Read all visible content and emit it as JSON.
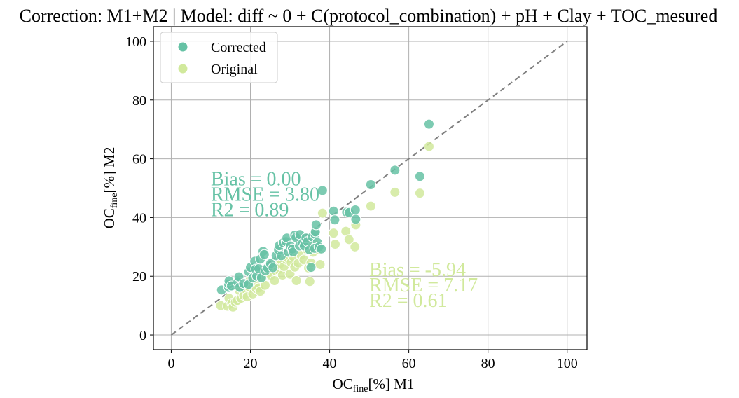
{
  "chart_data": {
    "type": "scatter",
    "title": "Correction: M1+M2 | Model: diff ~ 0 + C(protocol_combination) + pH + Clay + TOC_mesured",
    "xlabel": {
      "base": "OC",
      "sub": "fine",
      "rest": "[%] M1"
    },
    "ylabel": {
      "base": "OC",
      "sub": "fine",
      "rest": "[%] M2"
    },
    "xlim": [
      -4.5,
      105
    ],
    "ylim": [
      -5,
      105
    ],
    "xticks": [
      0,
      20,
      40,
      60,
      80,
      100
    ],
    "yticks": [
      0,
      20,
      40,
      60,
      80,
      100
    ],
    "grid": true,
    "legend_position": "upper left",
    "identity_line": {
      "from": [
        0,
        0
      ],
      "to": [
        100,
        100
      ],
      "style": "dashed",
      "color": "#7f7f7f"
    },
    "series": [
      {
        "name": "Corrected",
        "color": "#66c2a5",
        "stats": [
          "Bias = 0.00",
          "RMSE = 3.80",
          "R2 = 0.89"
        ],
        "stats_anchor": [
          10,
          51
        ],
        "points": [
          [
            12.7,
            15.3
          ],
          [
            14.5,
            16.2
          ],
          [
            14.5,
            17.3
          ],
          [
            14.6,
            18.4
          ],
          [
            15.2,
            16.7
          ],
          [
            16.8,
            18.0
          ],
          [
            17.1,
            19.8
          ],
          [
            17.3,
            16.2
          ],
          [
            18.3,
            17.5
          ],
          [
            19.5,
            17.2
          ],
          [
            19.6,
            21.5
          ],
          [
            20.0,
            23.0
          ],
          [
            20.6,
            19.4
          ],
          [
            21.1,
            25.1
          ],
          [
            21.3,
            22.4
          ],
          [
            21.6,
            20.0
          ],
          [
            22.1,
            22.6
          ],
          [
            22.5,
            25.8
          ],
          [
            22.8,
            19.5
          ],
          [
            23.2,
            28.5
          ],
          [
            23.5,
            27.4
          ],
          [
            23.8,
            21.8
          ],
          [
            24.3,
            22.8
          ],
          [
            25.1,
            24.3
          ],
          [
            25.7,
            22.9
          ],
          [
            26.5,
            27.0
          ],
          [
            27.1,
            29.0
          ],
          [
            27.3,
            30.4
          ],
          [
            27.8,
            27.0
          ],
          [
            28.3,
            31.4
          ],
          [
            29.0,
            31.8
          ],
          [
            29.2,
            33.0
          ],
          [
            29.6,
            28.2
          ],
          [
            30.1,
            30.3
          ],
          [
            30.6,
            29.3
          ],
          [
            30.8,
            28.3
          ],
          [
            31.2,
            34.0
          ],
          [
            31.5,
            33.2
          ],
          [
            32.5,
            34.2
          ],
          [
            32.4,
            30.3
          ],
          [
            33.2,
            31.3
          ],
          [
            33.6,
            30.3
          ],
          [
            34.0,
            33.0
          ],
          [
            34.4,
            31.8
          ],
          [
            34.9,
            29.0
          ],
          [
            35.3,
            23.0
          ],
          [
            35.6,
            33.4
          ],
          [
            36.3,
            34.3
          ],
          [
            36.4,
            35.1
          ],
          [
            36.6,
            37.5
          ],
          [
            36.9,
            31.5
          ],
          [
            36.2,
            29.5
          ],
          [
            37.3,
            30.0
          ],
          [
            37.9,
            29.3
          ],
          [
            38.2,
            49.2
          ],
          [
            41.0,
            42.2
          ],
          [
            41.3,
            39.2
          ],
          [
            44.3,
            41.8
          ],
          [
            44.9,
            41.7
          ],
          [
            46.5,
            42.6
          ],
          [
            46.6,
            39.4
          ],
          [
            50.4,
            51.2
          ],
          [
            56.5,
            56.1
          ],
          [
            62.8,
            54.0
          ],
          [
            65.1,
            71.8
          ]
        ]
      },
      {
        "name": "Original",
        "color": "#d1e99c",
        "stats": [
          "Bias = -5.94",
          "RMSE = 7.17",
          "R2 = 0.61"
        ],
        "stats_anchor": [
          50,
          20
        ],
        "points": [
          [
            12.5,
            10.0
          ],
          [
            14.2,
            9.8
          ],
          [
            14.6,
            12.5
          ],
          [
            15.3,
            10.8
          ],
          [
            15.6,
            9.5
          ],
          [
            16.2,
            11.2
          ],
          [
            16.7,
            11.8
          ],
          [
            17.6,
            12.5
          ],
          [
            17.2,
            15.2
          ],
          [
            18.3,
            13.5
          ],
          [
            18.7,
            15.7
          ],
          [
            19.2,
            13.0
          ],
          [
            19.6,
            16.5
          ],
          [
            20.0,
            18.8
          ],
          [
            20.6,
            14.0
          ],
          [
            21.2,
            17.0
          ],
          [
            21.5,
            15.8
          ],
          [
            22.1,
            16.0
          ],
          [
            22.5,
            14.9
          ],
          [
            23.0,
            19.5
          ],
          [
            23.7,
            16.9
          ],
          [
            24.2,
            21.0
          ],
          [
            25.2,
            20.3
          ],
          [
            26.1,
            18.5
          ],
          [
            26.5,
            21.8
          ],
          [
            27.0,
            22.2
          ],
          [
            27.3,
            24.0
          ],
          [
            27.6,
            25.6
          ],
          [
            28.1,
            20.4
          ],
          [
            28.5,
            23.3
          ],
          [
            29.1,
            25.7
          ],
          [
            29.5,
            26.2
          ],
          [
            30.0,
            20.7
          ],
          [
            30.3,
            24.7
          ],
          [
            30.7,
            26.8
          ],
          [
            31.2,
            23.1
          ],
          [
            31.6,
            18.5
          ],
          [
            32.1,
            24.5
          ],
          [
            32.8,
            27.2
          ],
          [
            33.5,
            25.6
          ],
          [
            34.0,
            30.2
          ],
          [
            34.2,
            29.2
          ],
          [
            34.7,
            22.8
          ],
          [
            35.0,
            18.2
          ],
          [
            35.3,
            24.5
          ],
          [
            35.8,
            28.2
          ],
          [
            36.3,
            30.8
          ],
          [
            36.7,
            29.5
          ],
          [
            37.2,
            29.0
          ],
          [
            37.6,
            24.0
          ],
          [
            38.2,
            41.5
          ],
          [
            41.0,
            34.7
          ],
          [
            41.4,
            30.9
          ],
          [
            44.1,
            35.3
          ],
          [
            44.9,
            32.5
          ],
          [
            46.4,
            30.0
          ],
          [
            46.6,
            37.5
          ],
          [
            50.4,
            43.9
          ],
          [
            56.5,
            48.6
          ],
          [
            62.8,
            48.3
          ],
          [
            65.1,
            64.2
          ]
        ]
      }
    ]
  }
}
